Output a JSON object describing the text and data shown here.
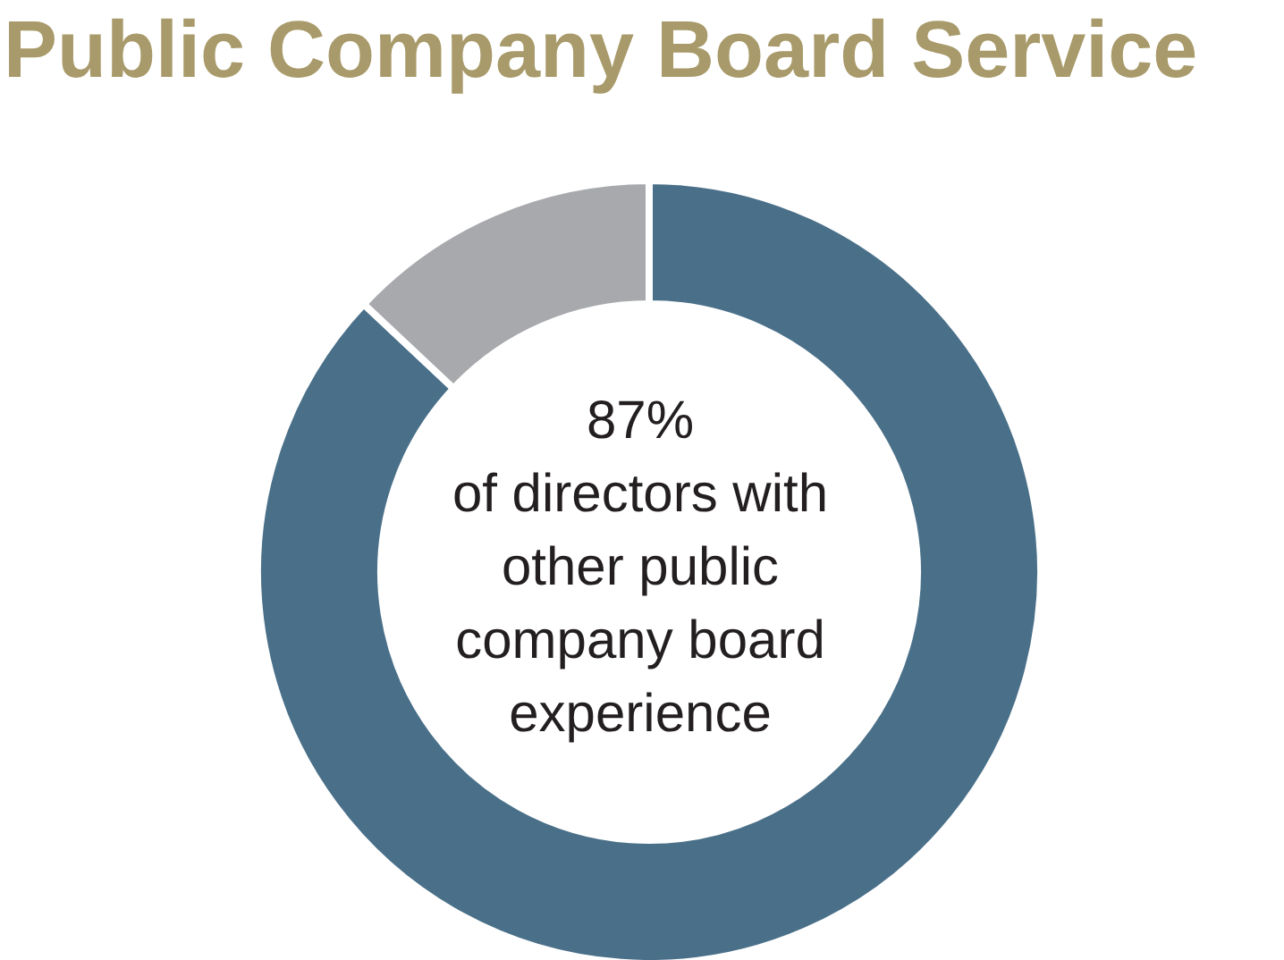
{
  "chart_data": {
    "type": "donut",
    "title": "Public Company Board Service",
    "categories": [
      null,
      null
    ],
    "values": [
      87,
      13
    ],
    "colors": [
      "#4a7089",
      "#a7a9ac"
    ],
    "value_labels": [
      "87%",
      null
    ],
    "annotations": [
      "of directors with other public company board experience"
    ],
    "legend": false
  }
}
